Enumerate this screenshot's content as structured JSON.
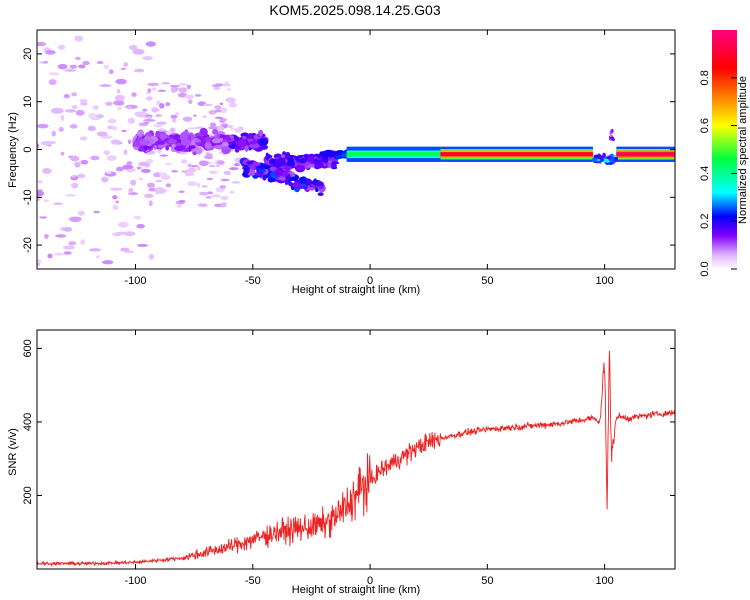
{
  "title": "KOM5.2025.098.14.25.G03",
  "chart_data": [
    {
      "type": "heatmap",
      "xlabel": "Height of straight line (km)",
      "ylabel": "Frequency (Hz)",
      "xlim": [
        -142,
        130
      ],
      "ylim": [
        -25,
        25
      ],
      "xticks": [
        -100,
        -50,
        0,
        50,
        100
      ],
      "yticks": [
        -20,
        -10,
        0,
        10,
        20
      ],
      "xtick_labels": [
        "-100",
        "-50",
        "0",
        "50",
        "100"
      ],
      "ytick_labels": [
        "-20",
        "-10",
        "0",
        "10",
        "20"
      ],
      "colorbar": {
        "label": "Normalized spectral amplitude",
        "range": [
          0,
          1
        ],
        "ticks": [
          0.0,
          0.2,
          0.4,
          0.6,
          0.8
        ],
        "tick_labels": [
          "0.0",
          "0.2",
          "0.4",
          "0.6",
          "0.8"
        ],
        "colors": [
          "#ffffff",
          "#c060ff",
          "#6000ff",
          "#0000ff",
          "#00ffff",
          "#00ff00",
          "#ffff00",
          "#ff8000",
          "#ff0000",
          "#ff0080"
        ]
      },
      "dominant_ridge": {
        "description": "",
        "segments": [
          {
            "x": [
              -10,
              30
            ],
            "y": -1,
            "amplitude": 0.45
          },
          {
            "x": [
              30,
              95
            ],
            "y": -1,
            "amplitude": 0.9
          },
          {
            "x": [
              105,
              130
            ],
            "y": -1,
            "amplitude": 0.95
          }
        ]
      }
    },
    {
      "type": "line",
      "xlabel": "Height of straight line (km)",
      "ylabel": "SNR (v/v)",
      "xlim": [
        -142,
        130
      ],
      "ylim": [
        0,
        650
      ],
      "xticks": [
        -100,
        -50,
        0,
        50,
        100
      ],
      "yticks": [
        200,
        400,
        600
      ],
      "xtick_labels": [
        "-100",
        "-50",
        "0",
        "50",
        "100"
      ],
      "ytick_labels": [
        "200",
        "400",
        "600"
      ],
      "color": "#ee2020",
      "series": [
        {
          "name": "",
          "x": [
            -142,
            -120,
            -100,
            -80,
            -70,
            -60,
            -50,
            -40,
            -30,
            -20,
            -15,
            -10,
            -5,
            0,
            5,
            10,
            15,
            20,
            25,
            30,
            40,
            50,
            60,
            70,
            80,
            90,
            95,
            98,
            100,
            101,
            102,
            103,
            105,
            110,
            120,
            130
          ],
          "values": [
            15,
            15,
            18,
            30,
            45,
            60,
            80,
            100,
            110,
            120,
            140,
            170,
            210,
            240,
            270,
            290,
            310,
            330,
            345,
            355,
            370,
            380,
            385,
            390,
            395,
            405,
            410,
            400,
            560,
            180,
            600,
            300,
            415,
            410,
            420,
            425
          ]
        }
      ]
    }
  ]
}
